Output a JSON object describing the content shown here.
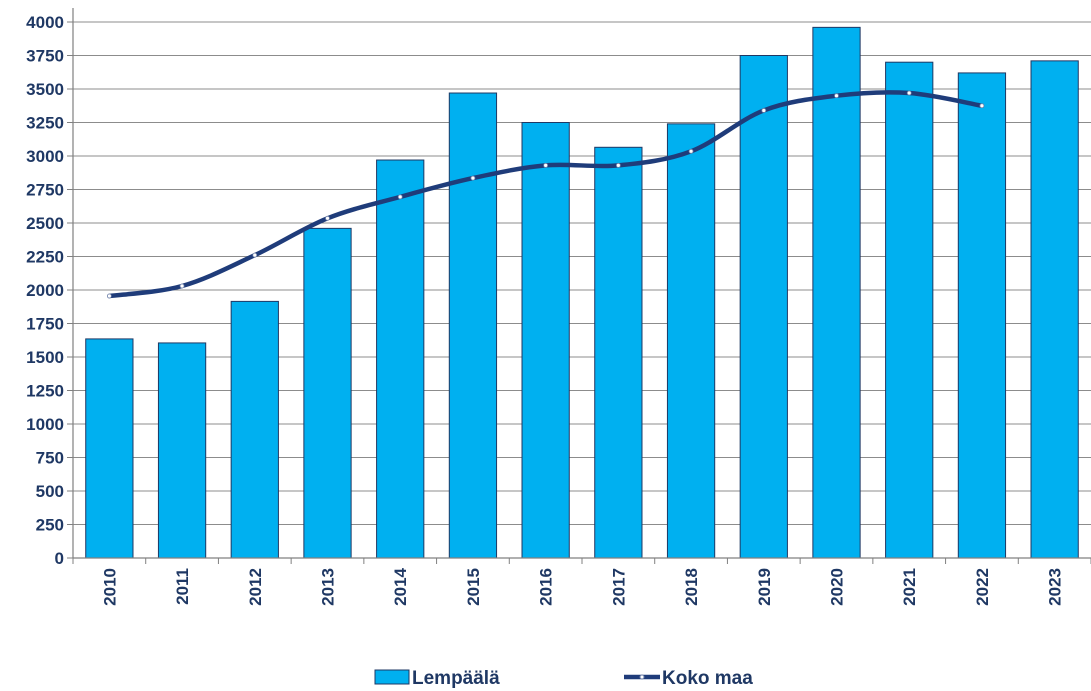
{
  "chart_data": {
    "type": "bar",
    "categories": [
      "2010",
      "2011",
      "2012",
      "2013",
      "2014",
      "2015",
      "2016",
      "2017",
      "2018",
      "2019",
      "2020",
      "2021",
      "2022",
      "2023"
    ],
    "series": [
      {
        "name": "Lempäälä",
        "type": "bar",
        "color": "#00b0f0",
        "values": [
          1635,
          1605,
          1915,
          2460,
          2970,
          3470,
          3250,
          3065,
          3240,
          3750,
          3960,
          3700,
          3620,
          3710
        ]
      },
      {
        "name": "Koko maa",
        "type": "line",
        "color": "#1f3c7a",
        "values": [
          1955,
          2030,
          2260,
          2535,
          2695,
          2835,
          2930,
          2930,
          3035,
          3340,
          3450,
          3470,
          3375,
          null
        ]
      }
    ],
    "y_ticks": [
      0,
      250,
      500,
      750,
      1000,
      1250,
      1500,
      1750,
      2000,
      2250,
      2500,
      2750,
      3000,
      3250,
      3500,
      3750,
      4000
    ],
    "ylim": [
      0,
      4000
    ],
    "title": "",
    "xlabel": "",
    "ylabel": "",
    "grid": true,
    "legend_position": "bottom"
  },
  "colors": {
    "grid": "#8c8c8c",
    "axis": "#808080",
    "tick_text": "#1f3864",
    "bar_stroke": "#1f3864"
  }
}
